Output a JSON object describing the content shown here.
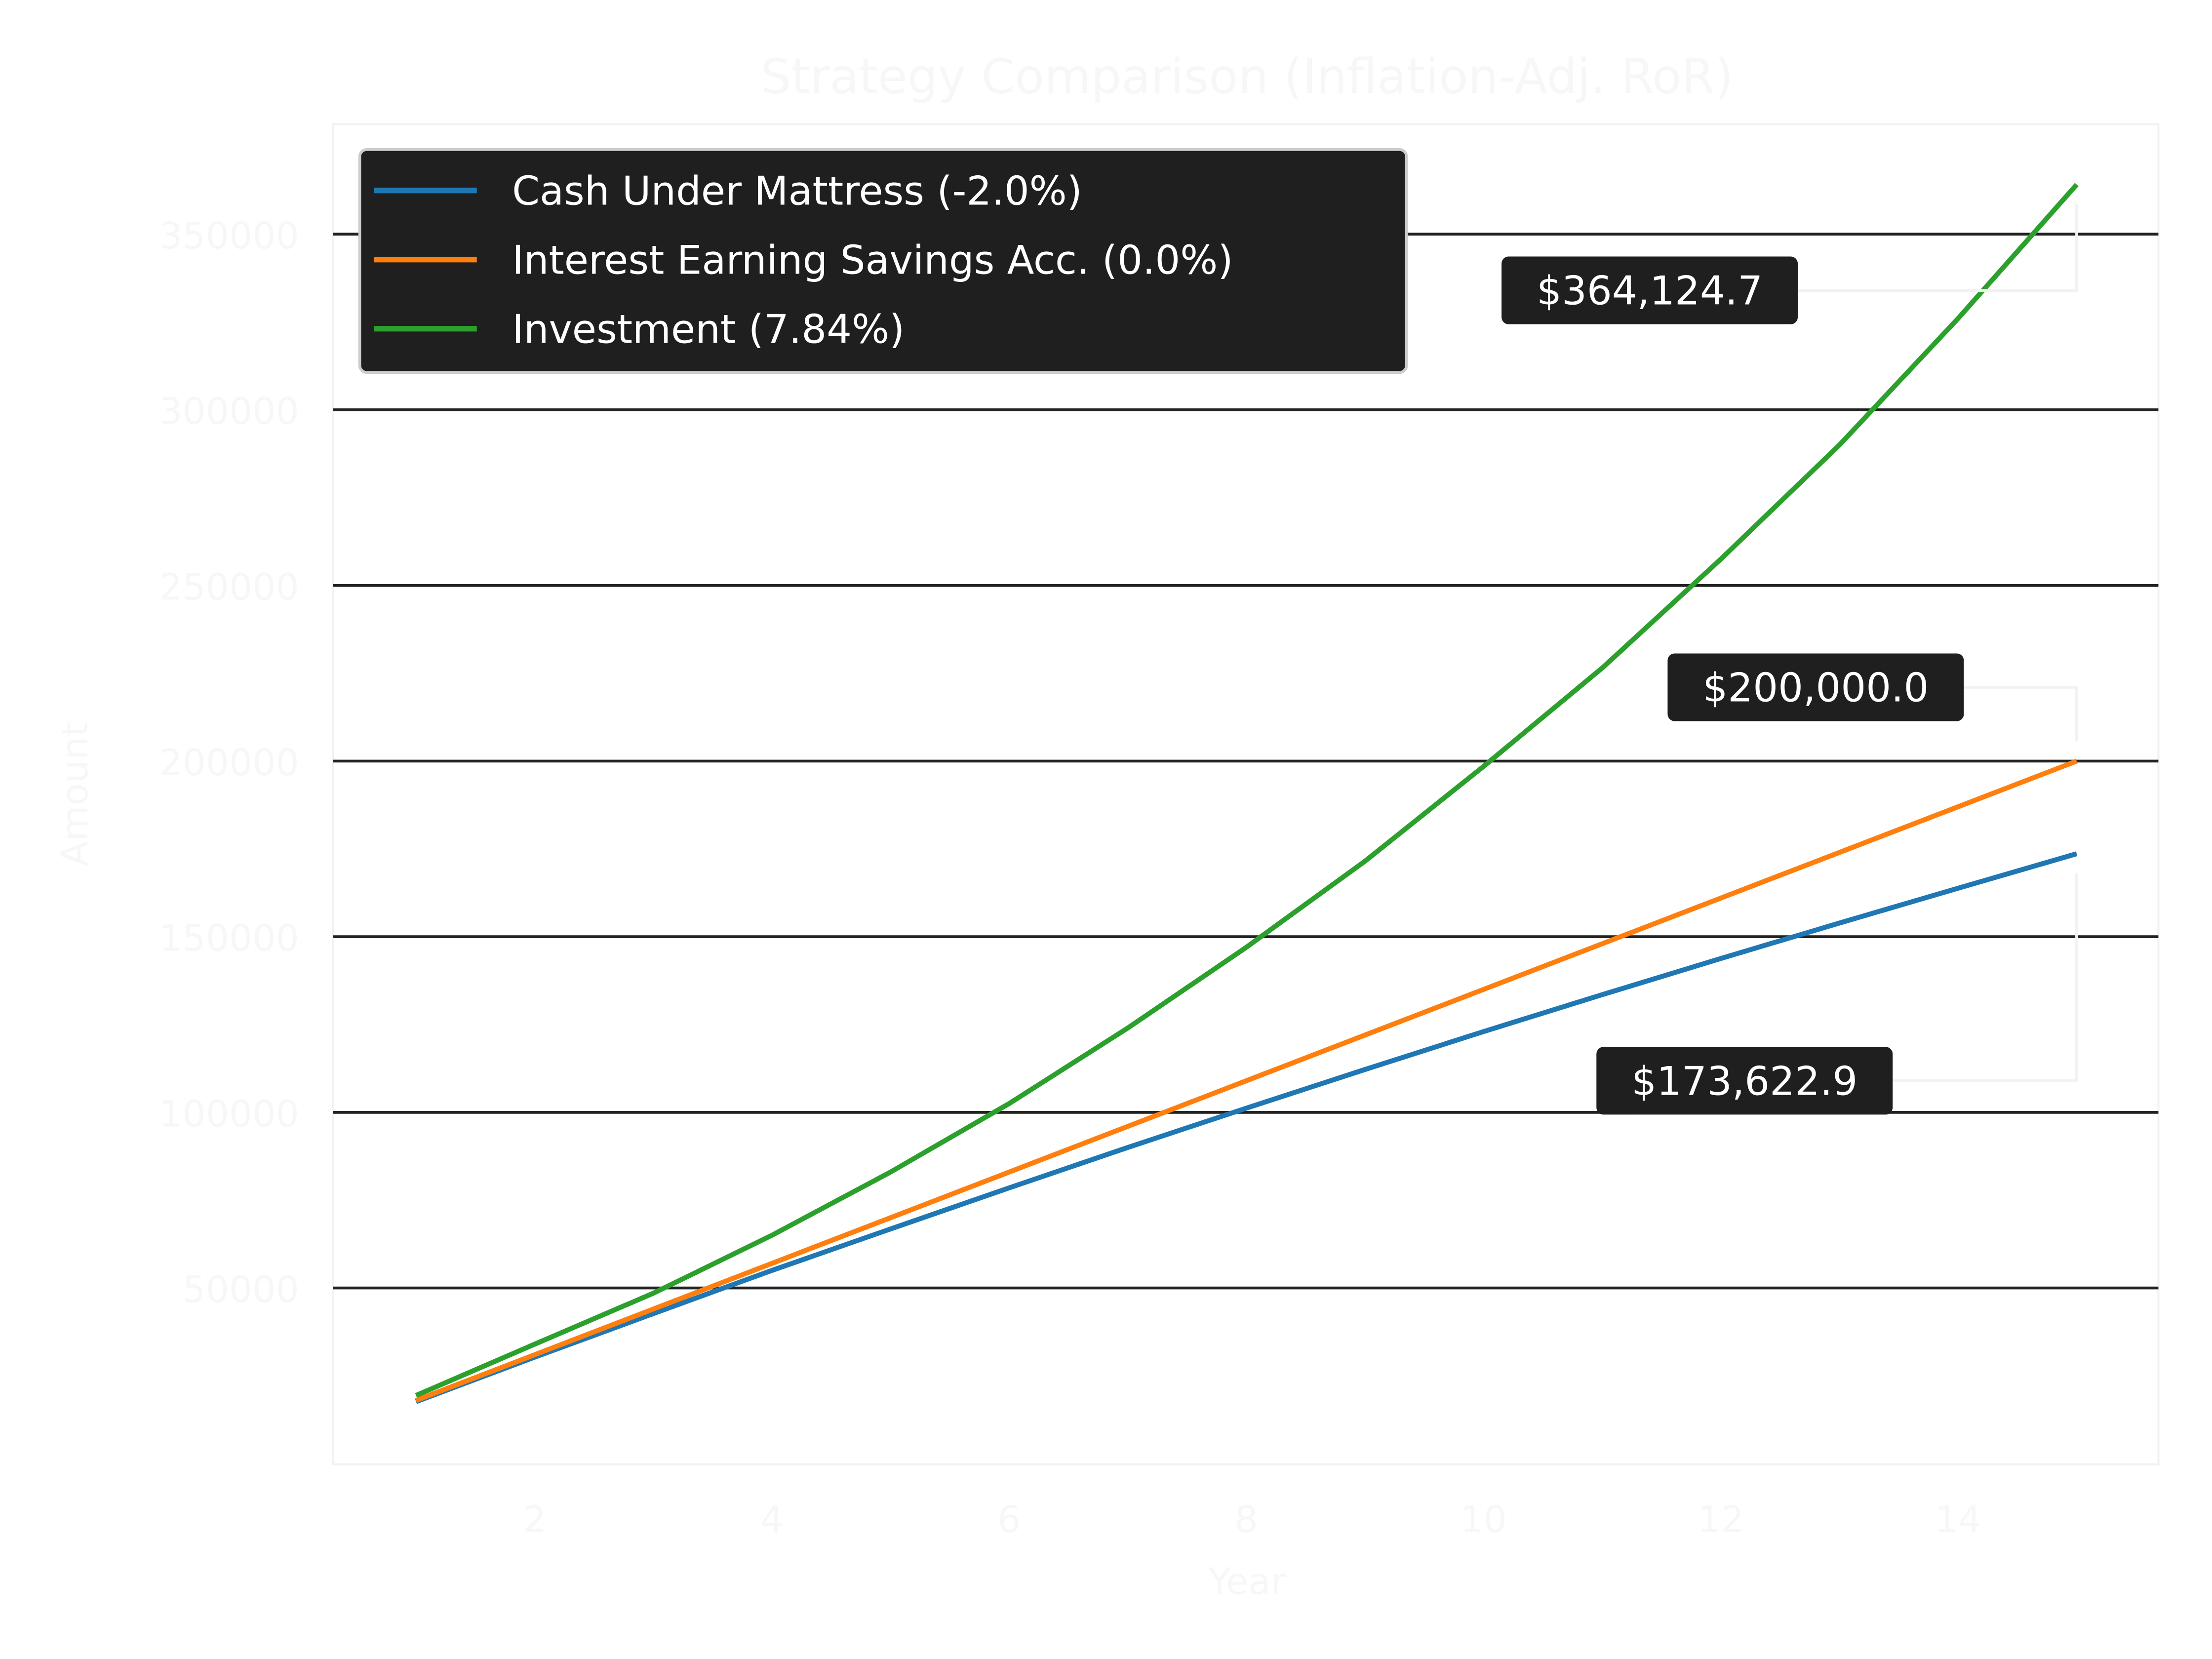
{
  "chart_data": {
    "type": "line",
    "title": "Strategy Comparison (Inflation-Adj. RoR)",
    "xlabel": "Year",
    "ylabel": "Amount",
    "xlim": [
      0.3,
      15.7
    ],
    "ylim": [
      8000,
      380000
    ],
    "xticks": [
      2,
      4,
      6,
      8,
      10,
      12,
      14
    ],
    "yticks": [
      50000,
      100000,
      150000,
      200000,
      250000,
      300000,
      350000
    ],
    "grid": "horizontal",
    "legend_position": "top-left",
    "x": [
      1,
      2,
      3,
      4,
      5,
      6,
      7,
      8,
      9,
      10,
      11,
      12,
      13,
      14,
      15
    ],
    "series": [
      {
        "name": "Cash Under Mattress (-2.0%)",
        "color": "#1f77b4",
        "values": [
          17640,
          30300,
          42700,
          55000,
          66800,
          78500,
          90000,
          101200,
          112200,
          123000,
          133500,
          143800,
          153900,
          163800,
          173622.9
        ]
      },
      {
        "name": "Interest Earning Savings Acc. (0.0%)",
        "color": "#ff7f0e",
        "values": [
          18000,
          31000,
          44000,
          57000,
          70000,
          83000,
          96000,
          109000,
          122000,
          135000,
          148000,
          161000,
          174000,
          187000,
          200000
        ]
      },
      {
        "name": "Investment (7.84%)",
        "color": "#2ca02c",
        "values": [
          19400,
          34000,
          48500,
          65000,
          83000,
          102500,
          124000,
          147000,
          171500,
          198500,
          226500,
          257500,
          290000,
          326000,
          364124.7
        ]
      }
    ],
    "annotations": [
      {
        "text": "$364,124.7",
        "series": 2,
        "lx": 11.4,
        "ly": 334000
      },
      {
        "text": "$200,000.0",
        "series": 1,
        "lx": 12.8,
        "ly": 221000
      },
      {
        "text": "$173,622.9",
        "series": 0,
        "lx": 12.2,
        "ly": 109000
      }
    ]
  }
}
